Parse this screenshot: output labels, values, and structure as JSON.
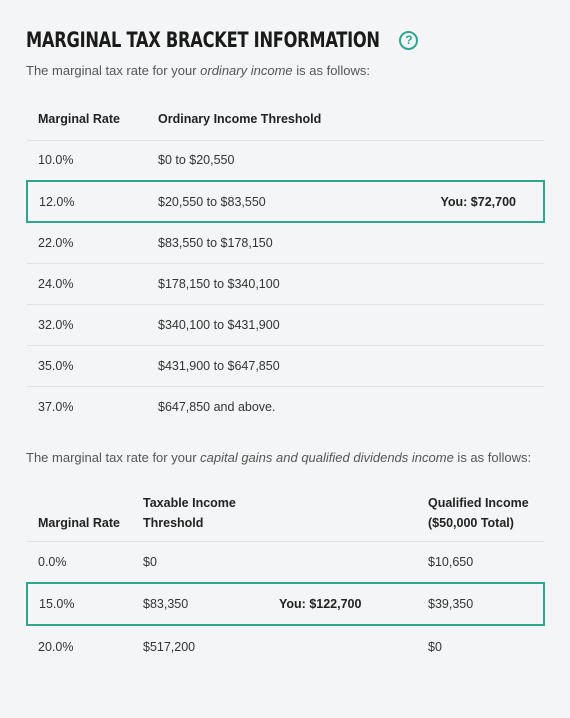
{
  "header": {
    "title": "MARGINAL TAX BRACKET INFORMATION",
    "help_glyph": "?"
  },
  "ordinary": {
    "intro_prefix": "The marginal tax rate for your ",
    "intro_em": "ordinary income",
    "intro_suffix": " is as follows:",
    "columns": [
      "Marginal Rate",
      "Ordinary Income Threshold"
    ],
    "rows": [
      {
        "rate": "10.0%",
        "threshold": "$0 to $20,550",
        "you": ""
      },
      {
        "rate": "12.0%",
        "threshold": "$20,550 to $83,550",
        "you": "You: $72,700"
      },
      {
        "rate": "22.0%",
        "threshold": "$83,550 to $178,150",
        "you": ""
      },
      {
        "rate": "24.0%",
        "threshold": "$178,150 to $340,100",
        "you": ""
      },
      {
        "rate": "32.0%",
        "threshold": "$340,100 to $431,900",
        "you": ""
      },
      {
        "rate": "35.0%",
        "threshold": "$431,900 to $647,850",
        "you": ""
      },
      {
        "rate": "37.0%",
        "threshold": "$647,850 and above.",
        "you": ""
      }
    ]
  },
  "capital": {
    "intro_prefix": "The marginal tax rate for your ",
    "intro_em": "capital gains and qualified dividends income",
    "intro_suffix": " is as follows:",
    "columns": {
      "rate": "Marginal Rate",
      "threshold_line1": "Taxable Income",
      "threshold_line2": "Threshold",
      "qualified_line1": "Qualified Income",
      "qualified_line2": "($50,000 Total)"
    },
    "rows": [
      {
        "rate": "0.0%",
        "threshold": "$0",
        "you": "",
        "qualified": "$10,650"
      },
      {
        "rate": "15.0%",
        "threshold": "$83,350",
        "you": "You: $122,700",
        "qualified": "$39,350"
      },
      {
        "rate": "20.0%",
        "threshold": "$517,200",
        "you": "",
        "qualified": "$0"
      }
    ]
  },
  "colors": {
    "accent": "#2fa58f",
    "background": "#f4f5f6",
    "divider": "#dfe1e3"
  }
}
